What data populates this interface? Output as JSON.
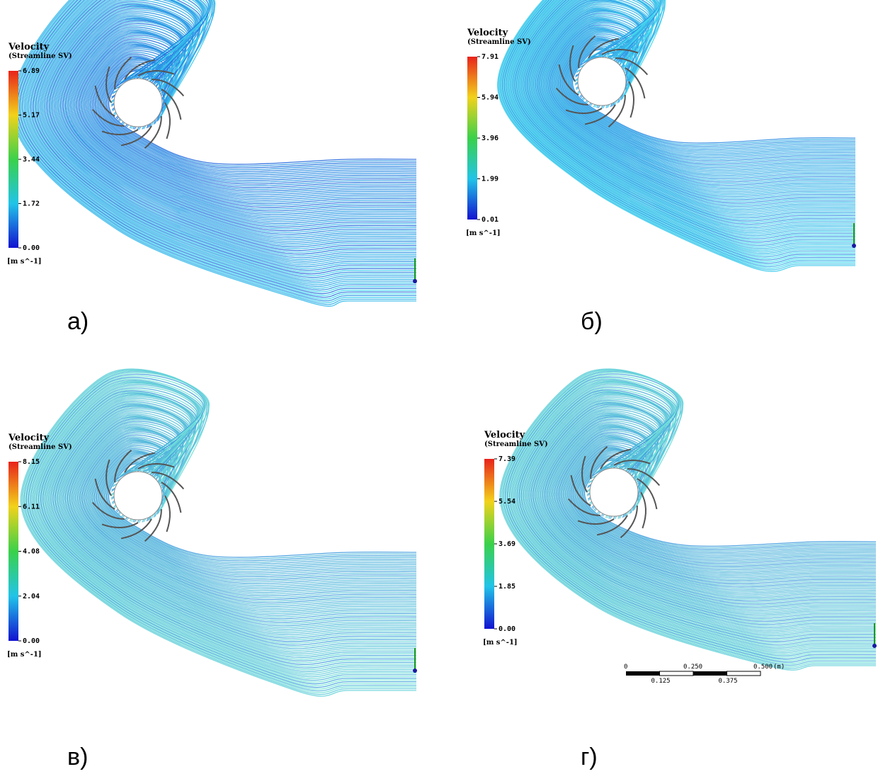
{
  "panels": [
    {
      "label": "а)",
      "legend": {
        "title": "Velocity",
        "subtitle": "(Streamline SV)",
        "ticks": [
          "6.89",
          "5.17",
          "3.44",
          "1.72",
          "0.00"
        ],
        "unit": "[m s^-1]"
      }
    },
    {
      "label": "б)",
      "legend": {
        "title": "Velocity",
        "subtitle": "(Streamline SV)",
        "ticks": [
          "7.91",
          "5.94",
          "3.96",
          "1.99",
          "0.01"
        ],
        "unit": "[m s^-1]"
      }
    },
    {
      "label": "в)",
      "legend": {
        "title": "Velocity",
        "subtitle": "(Streamline SV)",
        "ticks": [
          "8.15",
          "6.11",
          "4.08",
          "2.04",
          "0.00"
        ],
        "unit": "[m s^-1]"
      }
    },
    {
      "label": "г)",
      "legend": {
        "title": "Velocity",
        "subtitle": "(Streamline SV)",
        "ticks": [
          "7.39",
          "5.54",
          "3.69",
          "1.85",
          "0.00"
        ],
        "unit": "[m s^-1]"
      },
      "scale_bar": {
        "top_labels": [
          "0",
          "0.250",
          "0.500",
          "(m)"
        ],
        "bottom_labels": [
          "0.125",
          "0.375"
        ]
      }
    }
  ]
}
